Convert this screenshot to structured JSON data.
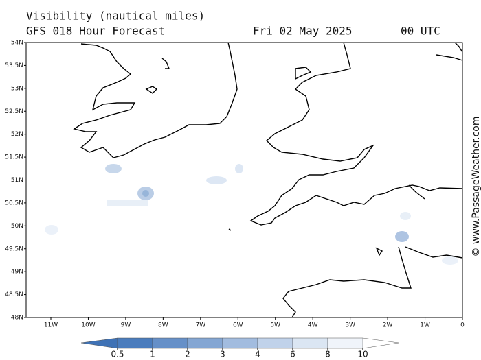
{
  "map": {
    "title": "Visibility (nautical miles)",
    "subtitle": "GFS 018 Hour Forecast",
    "date": "Fri 02 May 2025",
    "time": "00 UTC",
    "watermark": "© www.PassageWeather.com",
    "lat_labels": [
      "54N",
      "53.5N",
      "53N",
      "52.5N",
      "52N",
      "51.5N",
      "51N",
      "50.5N",
      "50N",
      "49.5N",
      "49N",
      "48.5N",
      "48N"
    ],
    "lon_labels": [
      "11W",
      "10W",
      "9W",
      "8W",
      "7W",
      "6W",
      "5W",
      "4W",
      "3W",
      "2W",
      "1W",
      "0"
    ],
    "legend_ticks": [
      0.5,
      1,
      2,
      3,
      4,
      6,
      8,
      10
    ]
  }
}
